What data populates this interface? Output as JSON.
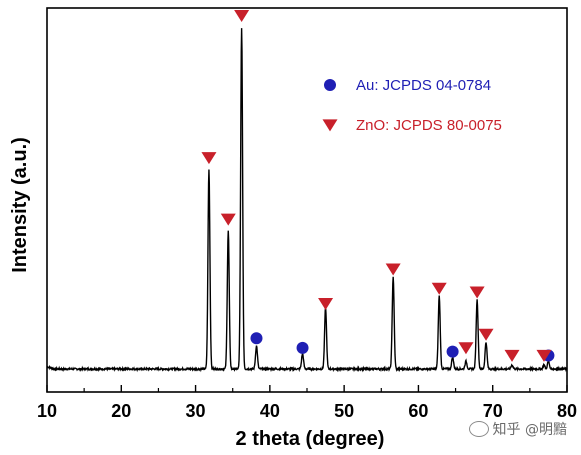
{
  "chart_data": {
    "type": "line",
    "xlabel": "2 theta (degree)",
    "ylabel": "Intensity (a.u.)",
    "xlim": [
      10,
      80
    ],
    "ylim": [
      0,
      100
    ],
    "x_ticks": [
      10,
      20,
      30,
      40,
      50,
      60,
      70,
      80
    ],
    "y_ticks_shown": false,
    "baseline": 6,
    "peaks": [
      {
        "x": 31.8,
        "y": 58
      },
      {
        "x": 34.4,
        "y": 42
      },
      {
        "x": 36.2,
        "y": 95
      },
      {
        "x": 38.2,
        "y": 12
      },
      {
        "x": 44.4,
        "y": 10
      },
      {
        "x": 47.5,
        "y": 22
      },
      {
        "x": 56.6,
        "y": 30
      },
      {
        "x": 62.8,
        "y": 25
      },
      {
        "x": 64.6,
        "y": 9
      },
      {
        "x": 66.4,
        "y": 8
      },
      {
        "x": 67.9,
        "y": 24
      },
      {
        "x": 69.1,
        "y": 13
      },
      {
        "x": 72.6,
        "y": 7
      },
      {
        "x": 76.9,
        "y": 7
      },
      {
        "x": 77.5,
        "y": 8
      }
    ],
    "series": [
      {
        "name": "Au: JCPDS 04-0784",
        "marker": "circle",
        "color": "#1f1fb4",
        "points": [
          {
            "x": 38.2,
            "y": 14
          },
          {
            "x": 44.4,
            "y": 11.5
          },
          {
            "x": 64.6,
            "y": 10.5
          },
          {
            "x": 77.5,
            "y": 9.5
          }
        ]
      },
      {
        "name": "ZnO: JCPDS 80-0075",
        "marker": "triangle-down",
        "color": "#c8202a",
        "points": [
          {
            "x": 31.8,
            "y": 61
          },
          {
            "x": 34.4,
            "y": 45
          },
          {
            "x": 36.2,
            "y": 98
          },
          {
            "x": 47.5,
            "y": 23
          },
          {
            "x": 56.6,
            "y": 32
          },
          {
            "x": 62.8,
            "y": 27
          },
          {
            "x": 66.4,
            "y": 11.5
          },
          {
            "x": 67.9,
            "y": 26
          },
          {
            "x": 69.1,
            "y": 15
          },
          {
            "x": 72.6,
            "y": 9.5
          },
          {
            "x": 76.9,
            "y": 9.5
          }
        ]
      }
    ],
    "legend": {
      "placement": "top-right"
    },
    "grid": false
  },
  "watermark": {
    "text": "知乎 @明黯"
  }
}
